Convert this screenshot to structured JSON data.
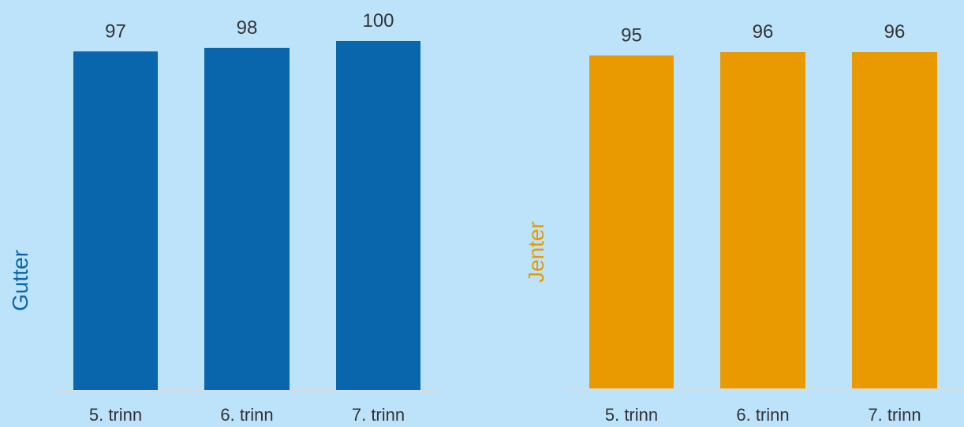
{
  "chart_data": [
    {
      "type": "bar",
      "ylabel": "Gutter",
      "categories": [
        "5. trinn",
        "6. trinn",
        "7. trinn"
      ],
      "values": [
        97,
        98,
        100
      ],
      "ylim": [
        0,
        100
      ],
      "color": "#0966ad",
      "label_color": "#0966ad",
      "grid": false
    },
    {
      "type": "bar",
      "ylabel": "Jenter",
      "categories": [
        "5. trinn",
        "6. trinn",
        "7. trinn"
      ],
      "values": [
        95,
        96,
        96
      ],
      "ylim": [
        0,
        96
      ],
      "color": "#e89a00",
      "label_color": "#e89a00",
      "grid": false
    }
  ]
}
